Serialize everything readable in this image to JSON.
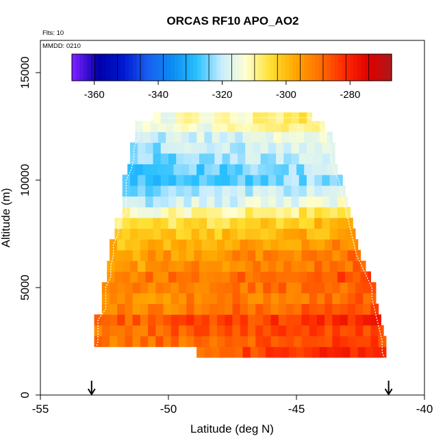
{
  "chart_data": {
    "type": "heatmap",
    "title": "ORCAS RF10 APO_AO2",
    "flights_label": "Flts: 10",
    "date_label": "MMDD: 0210",
    "xlabel": "Latitude (deg N)",
    "ylabel": "Altitude (m)",
    "xlim": [
      -55,
      -40
    ],
    "ylim": [
      0,
      16500
    ],
    "x_ticks": [
      -55,
      -50,
      -45,
      -40
    ],
    "x_tick_labels": [
      "-55",
      "-50",
      "-45",
      "-40"
    ],
    "y_ticks": [
      0,
      5000,
      10000,
      15000
    ],
    "y_tick_labels": [
      "0",
      "5000",
      "10000",
      "15000"
    ],
    "colorbar": {
      "range": [
        -367,
        -267
      ],
      "ticks": [
        -360,
        -340,
        -320,
        -300,
        -280
      ],
      "tick_labels": [
        "-360",
        "-340",
        "-320",
        "-300",
        "-280"
      ],
      "colors": [
        "#7a1fff",
        "#0000a8",
        "#0018d0",
        "#1a5ef0",
        "#0b8cf2",
        "#29c0ff",
        "#c8ecff",
        "#ffffd0",
        "#ffe030",
        "#ffa800",
        "#ff7000",
        "#ff2a00",
        "#e00000",
        "#a81a1a"
      ]
    },
    "profile_markers_lat": [
      -53.0,
      -41.4
    ],
    "curtain_rows": [
      {
        "alt": 2000,
        "x0": -48.9,
        "x1": -41.5,
        "value": -284
      },
      {
        "alt": 2500,
        "x0": -52.9,
        "x1": -41.5,
        "value": -288
      },
      {
        "alt": 3000,
        "x0": -52.9,
        "x1": -41.6,
        "value": -287
      },
      {
        "alt": 3500,
        "x0": -52.9,
        "x1": -41.7,
        "value": -285
      },
      {
        "alt": 4000,
        "x0": -52.6,
        "x1": -41.8,
        "value": -290
      },
      {
        "alt": 4500,
        "x0": -52.6,
        "x1": -41.9,
        "value": -292
      },
      {
        "alt": 5000,
        "x0": -52.6,
        "x1": -41.9,
        "value": -291
      },
      {
        "alt": 5500,
        "x0": -52.4,
        "x1": -42.1,
        "value": -289
      },
      {
        "alt": 6000,
        "x0": -52.4,
        "x1": -42.3,
        "value": -293
      },
      {
        "alt": 6500,
        "x0": -52.3,
        "x1": -42.5,
        "value": -294
      },
      {
        "alt": 7000,
        "x0": -52.3,
        "x1": -42.6,
        "value": -297
      },
      {
        "alt": 7500,
        "x0": -52.1,
        "x1": -42.7,
        "value": -301
      },
      {
        "alt": 8000,
        "x0": -52.1,
        "x1": -42.8,
        "value": -304
      },
      {
        "alt": 8500,
        "x0": -51.8,
        "x1": -42.9,
        "value": -310
      },
      {
        "alt": 9000,
        "x0": -51.8,
        "x1": -43.0,
        "value": -318
      },
      {
        "alt": 9500,
        "x0": -51.8,
        "x1": -43.1,
        "value": -322
      },
      {
        "alt": 10000,
        "x0": -51.8,
        "x1": -43.2,
        "value": -326
      },
      {
        "alt": 10500,
        "x0": -51.6,
        "x1": -43.4,
        "value": -325
      },
      {
        "alt": 11000,
        "x0": -51.5,
        "x1": -43.5,
        "value": -322
      },
      {
        "alt": 11500,
        "x0": -51.5,
        "x1": -43.5,
        "value": -320
      },
      {
        "alt": 12000,
        "x0": -51.3,
        "x1": -43.6,
        "value": -318
      },
      {
        "alt": 12500,
        "x0": -51.3,
        "x1": -43.9,
        "value": -313
      },
      {
        "alt": 12900,
        "x0": -50.6,
        "x1": -44.4,
        "value": -311
      }
    ]
  }
}
